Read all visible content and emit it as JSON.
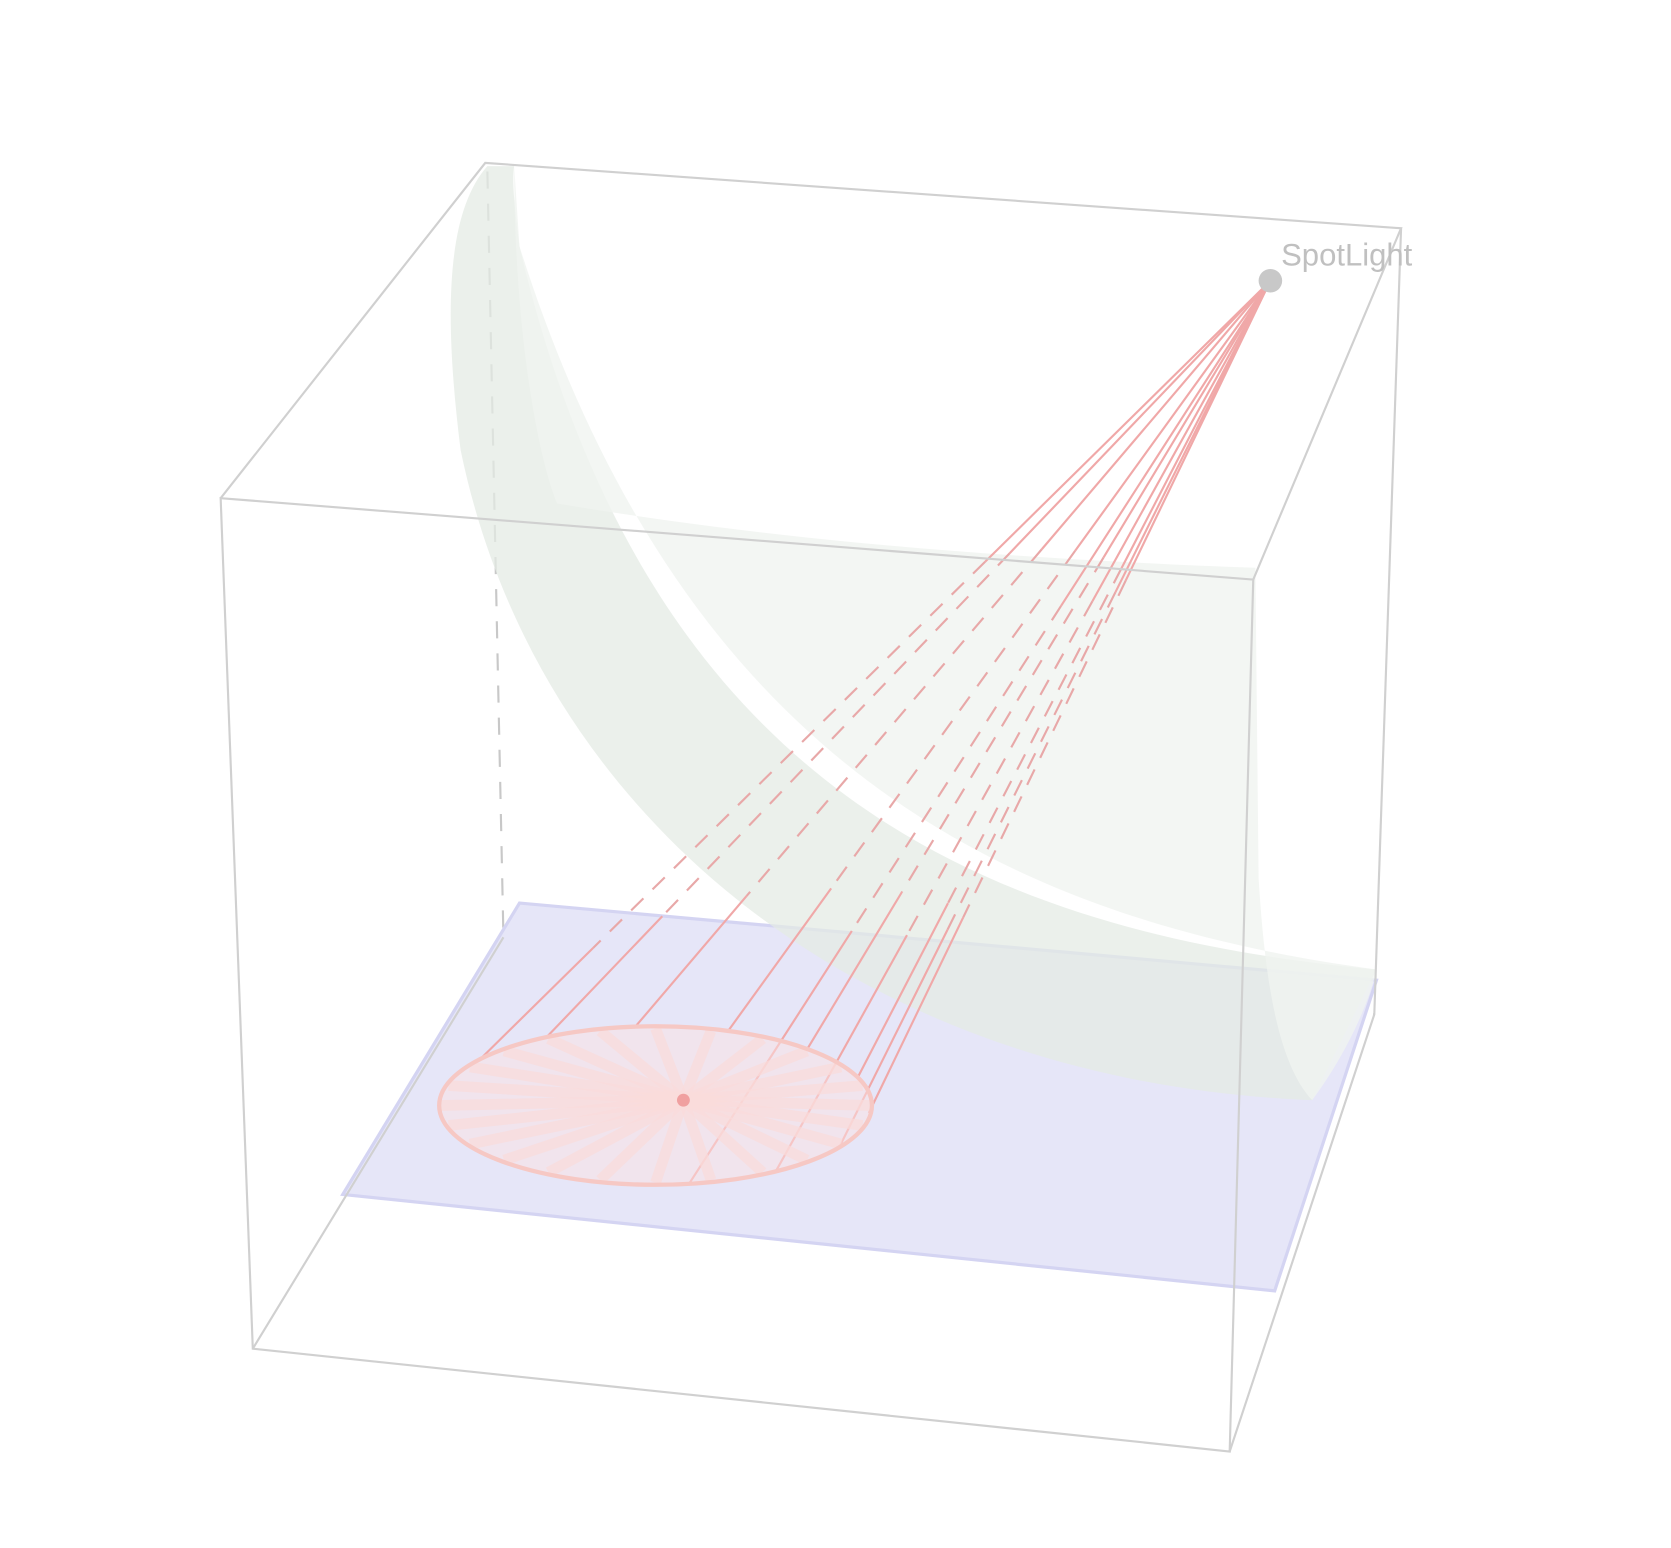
{
  "labels": {
    "spotlight": "SpotLight"
  }
}
